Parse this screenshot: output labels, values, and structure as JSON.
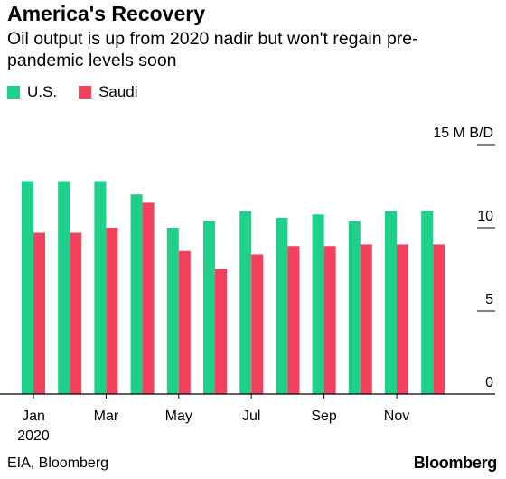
{
  "header": {
    "title": "America's Recovery",
    "subtitle": "Oil output is up from 2020 nadir but won't regain pre-pandemic levels soon"
  },
  "legend": [
    {
      "label": "U.S.",
      "color": "#1fd08b"
    },
    {
      "label": "Saudi",
      "color": "#f5415d"
    }
  ],
  "footer": {
    "source": "EIA, Bloomberg",
    "logo": "Bloomberg"
  },
  "chart_data": {
    "type": "bar",
    "categories": [
      "Jan 2020",
      "Feb 2020",
      "Mar 2020",
      "Apr 2020",
      "May 2020",
      "Jun 2020",
      "Jul 2020",
      "Aug 2020",
      "Sep 2020",
      "Oct 2020",
      "Nov 2020",
      "Dec 2020"
    ],
    "series": [
      {
        "name": "U.S.",
        "color": "#1fd08b",
        "values": [
          12.8,
          12.8,
          12.8,
          12.0,
          10.0,
          10.4,
          11.0,
          10.6,
          10.8,
          10.4,
          11.0,
          11.0
        ]
      },
      {
        "name": "Saudi",
        "color": "#f5415d",
        "values": [
          9.7,
          9.7,
          10.0,
          11.5,
          8.6,
          7.5,
          8.4,
          8.9,
          8.9,
          9.0,
          9.0,
          9.0
        ]
      }
    ],
    "x_tick_labels": [
      {
        "index": 0,
        "label": "Jan",
        "sublabel": "2020"
      },
      {
        "index": 2,
        "label": "Mar"
      },
      {
        "index": 4,
        "label": "May"
      },
      {
        "index": 6,
        "label": "Jul"
      },
      {
        "index": 8,
        "label": "Sep"
      },
      {
        "index": 10,
        "label": "Nov"
      }
    ],
    "y_ticks": [
      {
        "value": 15,
        "label": "15 M B/D"
      },
      {
        "value": 10,
        "label": "10"
      },
      {
        "value": 5,
        "label": "5"
      },
      {
        "value": 0,
        "label": "0"
      }
    ],
    "ylim": [
      0,
      15
    ],
    "grid": false
  }
}
